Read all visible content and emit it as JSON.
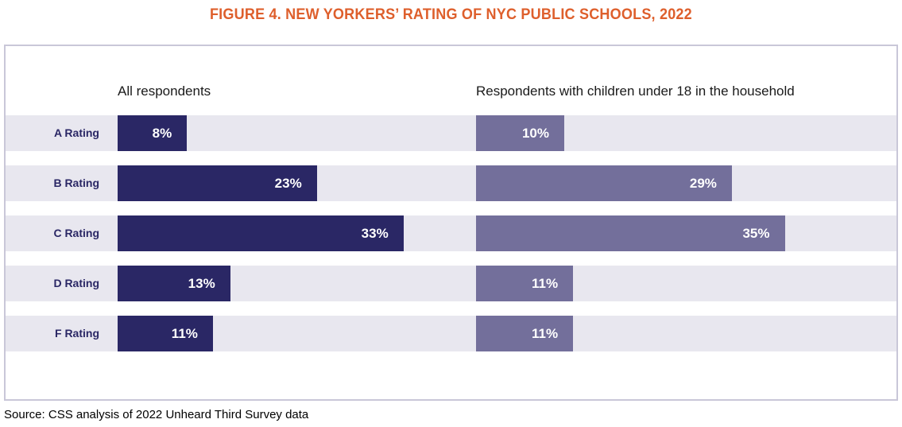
{
  "title": "FIGURE 4. NEW YORKERS’ RATING OF NYC PUBLIC SCHOOLS, 2022",
  "source": "Source: CSS analysis of 2022 Unheard Third Survey data",
  "colors": {
    "title_orange": "#DE5F2C",
    "bar_all_respondents": "#2A2765",
    "bar_with_children": "#736F9B",
    "row_stripe": "#E8E7EF",
    "frame_border": "#C9C7D8",
    "category_label": "#2A2765"
  },
  "chart_data": {
    "type": "bar",
    "orientation": "horizontal",
    "title": "FIGURE 4. NEW YORKERS’ RATING OF NYC PUBLIC SCHOOLS, 2022",
    "categories": [
      "A Rating",
      "B Rating",
      "C Rating",
      "D Rating",
      "F Rating"
    ],
    "series": [
      {
        "name": "All respondents",
        "values": [
          8,
          23,
          33,
          13,
          11
        ],
        "color": "#2A2765"
      },
      {
        "name": "Respondents with children under 18 in the household",
        "values": [
          10,
          29,
          35,
          11,
          11
        ],
        "color": "#736F9B"
      }
    ],
    "value_suffix": "%",
    "value_labels_inside_bars": true,
    "grid": false,
    "legend_position": "column-headers",
    "xlim": [
      0,
      41
    ]
  }
}
